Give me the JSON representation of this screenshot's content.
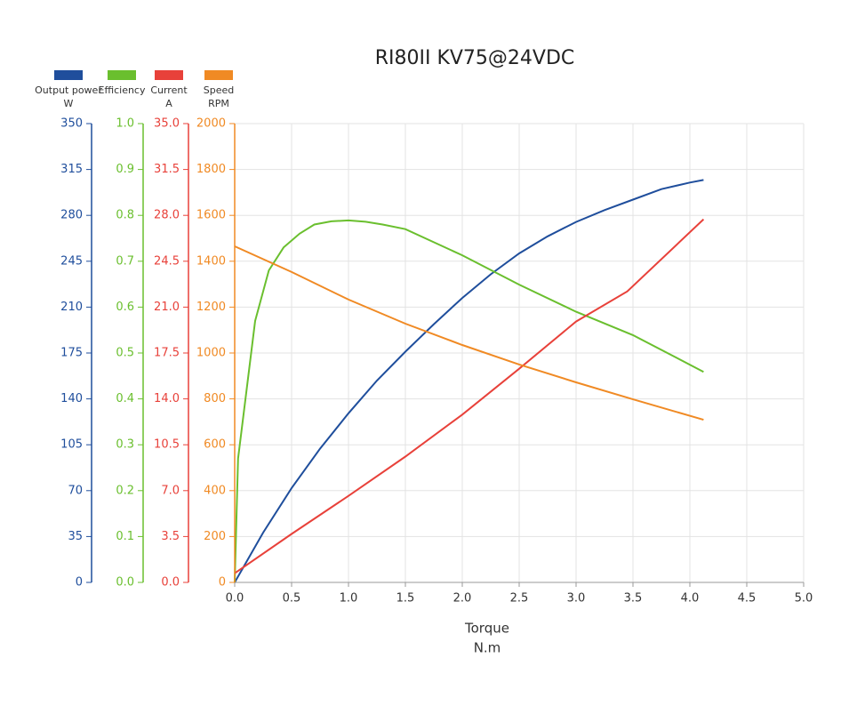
{
  "chart_data": {
    "type": "line",
    "title": "RI80II KV75@24VDC",
    "x_label": "Torque",
    "x_unit": "N.m",
    "xlim": [
      0,
      5
    ],
    "xticks": [
      {
        "value": 0,
        "label": "0.0"
      },
      {
        "value": 0.5,
        "label": "0.5"
      },
      {
        "value": 1,
        "label": "1.0"
      },
      {
        "value": 1.5,
        "label": "1.5"
      },
      {
        "value": 2,
        "label": "2.0"
      },
      {
        "value": 2.5,
        "label": "2.5"
      },
      {
        "value": 3,
        "label": "3.0"
      },
      {
        "value": 3.5,
        "label": "3.5"
      },
      {
        "value": 4,
        "label": "4.0"
      },
      {
        "value": 4.5,
        "label": "4.5"
      },
      {
        "value": 5,
        "label": "5.0"
      }
    ],
    "grid": true,
    "series": [
      {
        "name": "Output power",
        "unit": "W",
        "color": "#1f4e9c",
        "ylim": [
          0,
          350
        ],
        "yticks": [
          0,
          35,
          70,
          105,
          140,
          175,
          210,
          245,
          280,
          315,
          350
        ],
        "x": [
          0,
          0.25,
          0.5,
          0.75,
          1.0,
          1.25,
          1.5,
          1.75,
          2.0,
          2.25,
          2.5,
          2.75,
          3.0,
          3.25,
          3.5,
          3.75,
          4.0,
          4.12
        ],
        "values": [
          0,
          38,
          72,
          102,
          129,
          154,
          176,
          197,
          217,
          235,
          251,
          264,
          275,
          284,
          292,
          300,
          305,
          307
        ]
      },
      {
        "name": "Efficiency",
        "color": "#6abf2e",
        "ylim": [
          0,
          1
        ],
        "yticks": [
          {
            "value": 0,
            "label": "0.0"
          },
          0.1,
          0.2,
          0.3,
          0.4,
          0.5,
          0.6,
          0.7,
          0.8,
          0.9,
          {
            "value": 1,
            "label": "1.0"
          }
        ],
        "x": [
          0,
          0.03,
          0.18,
          0.3,
          0.43,
          0.57,
          0.7,
          0.85,
          1.0,
          1.15,
          1.3,
          1.5,
          2.0,
          2.5,
          3.0,
          3.5,
          4.12
        ],
        "values": [
          0,
          0.27,
          0.57,
          0.68,
          0.73,
          0.76,
          0.78,
          0.787,
          0.789,
          0.786,
          0.78,
          0.77,
          0.713,
          0.649,
          0.59,
          0.539,
          0.459
        ]
      },
      {
        "name": "Current",
        "unit": "A",
        "color": "#e8413a",
        "ylim": [
          0,
          35
        ],
        "yticks": [
          {
            "value": 0,
            "label": "0.0"
          },
          3.5,
          {
            "value": 7,
            "label": "7.0"
          },
          10.5,
          {
            "value": 14,
            "label": "14.0"
          },
          17.5,
          {
            "value": 21,
            "label": "21.0"
          },
          24.5,
          {
            "value": 28,
            "label": "28.0"
          },
          31.5,
          {
            "value": 35,
            "label": "35.0"
          }
        ],
        "x": [
          0,
          0.5,
          1.0,
          1.5,
          2.0,
          2.5,
          3.0,
          3.45,
          4.12
        ],
        "values": [
          0.7,
          3.7,
          6.6,
          9.6,
          12.8,
          16.3,
          19.9,
          22.2,
          27.7
        ]
      },
      {
        "name": "Speed",
        "unit": "RPM",
        "color": "#f08a24",
        "ylim": [
          0,
          2000
        ],
        "yticks": [
          0,
          200,
          400,
          600,
          800,
          1000,
          1200,
          1400,
          1600,
          1800,
          2000
        ],
        "x": [
          0,
          0.5,
          1.0,
          1.5,
          2.0,
          2.5,
          3.0,
          3.5,
          4.12
        ],
        "values": [
          1465,
          1353,
          1233,
          1128,
          1035,
          950,
          872,
          798,
          709
        ]
      }
    ]
  }
}
